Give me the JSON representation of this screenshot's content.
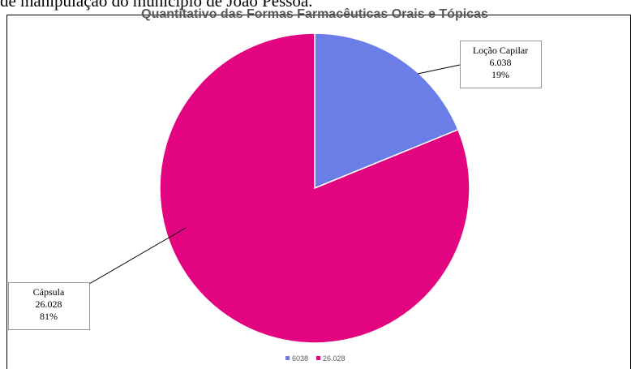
{
  "context_text": "de manipulação do município de João Pessoa.",
  "chart_data": {
    "type": "pie",
    "title": "Quantitativo das Formas Farmacêuticas Orais e Tópicas",
    "categories": [
      "Loção Capilar",
      "Cápsula"
    ],
    "values": [
      6038,
      26028
    ],
    "value_labels": [
      "6.038",
      "26.028"
    ],
    "percent_values": [
      19,
      81
    ],
    "percent_labels": [
      "19%",
      "81%"
    ],
    "colors": [
      "#6b7ee8",
      "#e2057f"
    ],
    "legend_labels": [
      "6038",
      "26.028"
    ],
    "legend": "bottom"
  }
}
